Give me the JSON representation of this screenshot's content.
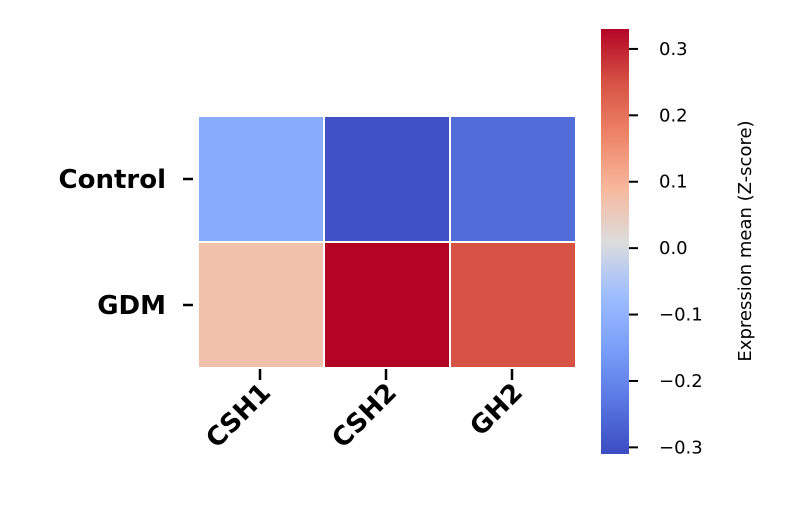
{
  "chart_data": {
    "type": "heatmap",
    "rows": [
      "Control",
      "GDM"
    ],
    "columns": [
      "CSH1",
      "CSH2",
      "GH2"
    ],
    "values": [
      [
        -0.12,
        -0.3,
        -0.25
      ],
      [
        0.07,
        0.33,
        0.25
      ]
    ],
    "colormap": "coolwarm",
    "vmin": -0.31,
    "vmax": 0.33,
    "colorbar": {
      "label": "Expression mean (Z-score)",
      "ticks": [
        -0.3,
        -0.2,
        -0.1,
        0.0,
        0.1,
        0.2,
        0.3
      ],
      "tick_labels": [
        "−0.3",
        "−0.2",
        "−0.1",
        "0.0",
        "0.1",
        "0.2",
        "0.3"
      ]
    },
    "cell_border_color": "#ffffff",
    "column_label_rotation": -45
  }
}
